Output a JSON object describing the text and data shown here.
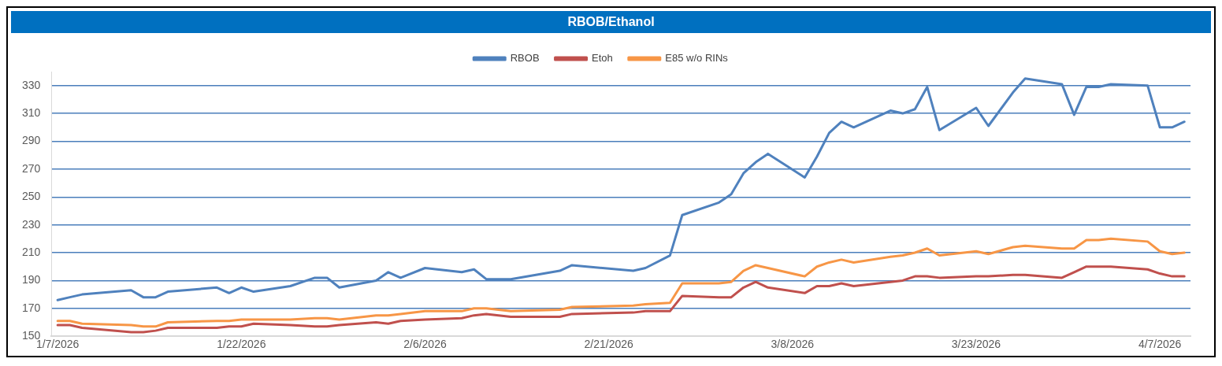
{
  "chart_data": {
    "type": "line",
    "title": "RBOB/Ethanol",
    "x": [
      "2026-01-07",
      "2026-01-08",
      "2026-01-09",
      "2026-01-13",
      "2026-01-14",
      "2026-01-15",
      "2026-01-16",
      "2026-01-20",
      "2026-01-21",
      "2026-01-22",
      "2026-01-23",
      "2026-01-26",
      "2026-01-28",
      "2026-01-29",
      "2026-01-30",
      "2026-02-02",
      "2026-02-03",
      "2026-02-04",
      "2026-02-06",
      "2026-02-09",
      "2026-02-10",
      "2026-02-11",
      "2026-02-13",
      "2026-02-17",
      "2026-02-18",
      "2026-02-23",
      "2026-02-24",
      "2026-02-26",
      "2026-02-27",
      "2026-03-02",
      "2026-03-03",
      "2026-03-04",
      "2026-03-05",
      "2026-03-06",
      "2026-03-09",
      "2026-03-10",
      "2026-03-11",
      "2026-03-12",
      "2026-03-13",
      "2026-03-16",
      "2026-03-17",
      "2026-03-18",
      "2026-03-19",
      "2026-03-20",
      "2026-03-23",
      "2026-03-24",
      "2026-03-26",
      "2026-03-27",
      "2026-03-30",
      "2026-03-31",
      "2026-04-01",
      "2026-04-02",
      "2026-04-03",
      "2026-04-06",
      "2026-04-07",
      "2026-04-08",
      "2026-04-09"
    ],
    "series": [
      {
        "name": "RBOB",
        "color": "#4f81bd",
        "values": [
          176,
          178,
          180,
          183,
          178,
          178,
          182,
          185,
          181,
          185,
          182,
          186,
          192,
          192,
          185,
          190,
          196,
          192,
          199,
          196,
          198,
          191,
          191,
          197,
          201,
          197,
          199,
          208,
          237,
          246,
          252,
          267,
          275,
          281,
          264,
          279,
          296,
          304,
          300,
          312,
          310,
          313,
          329,
          298,
          314,
          301,
          325,
          335,
          331,
          309,
          329,
          329,
          331,
          330,
          300,
          300,
          304
        ]
      },
      {
        "name": "Etoh",
        "color": "#c0504d",
        "values": [
          158,
          158,
          156,
          153,
          153,
          154,
          156,
          156,
          157,
          157,
          159,
          158,
          157,
          157,
          158,
          160,
          159,
          161,
          162,
          163,
          165,
          166,
          164,
          164,
          166,
          167,
          168,
          168,
          179,
          178,
          178,
          185,
          189,
          185,
          181,
          186,
          186,
          188,
          186,
          189,
          190,
          193,
          193,
          192,
          193,
          193,
          194,
          194,
          192,
          196,
          200,
          200,
          200,
          198,
          195,
          193,
          193
        ]
      },
      {
        "name": "E85 w/o RINs",
        "color": "#f79646",
        "values": [
          161,
          161,
          159,
          158,
          157,
          157,
          160,
          161,
          161,
          162,
          162,
          162,
          163,
          163,
          162,
          165,
          165,
          166,
          168,
          168,
          170,
          170,
          168,
          169,
          171,
          172,
          173,
          174,
          188,
          188,
          189,
          197,
          201,
          199,
          193,
          200,
          203,
          205,
          203,
          207,
          208,
          210,
          213,
          208,
          211,
          209,
          214,
          215,
          213,
          213,
          219,
          219,
          220,
          218,
          211,
          209,
          210
        ]
      }
    ],
    "xlim": [
      "2026-01-06T12:00",
      "2026-04-09T12:00"
    ],
    "xticks": [
      {
        "value": "2026-01-07",
        "label": "1/7/2026"
      },
      {
        "value": "2026-01-22",
        "label": "1/22/2026"
      },
      {
        "value": "2026-02-06",
        "label": "2/6/2026"
      },
      {
        "value": "2026-02-21",
        "label": "2/21/2026"
      },
      {
        "value": "2026-03-08",
        "label": "3/8/2026"
      },
      {
        "value": "2026-03-23",
        "label": "3/23/2026"
      },
      {
        "value": "2026-04-07",
        "label": "4/7/2026"
      }
    ],
    "ylim": [
      150,
      340
    ],
    "yticks": [
      150,
      170,
      190,
      210,
      230,
      250,
      270,
      290,
      310,
      330
    ],
    "grid": "y",
    "legend": "top",
    "marker": "none",
    "line_style": "solid"
  }
}
